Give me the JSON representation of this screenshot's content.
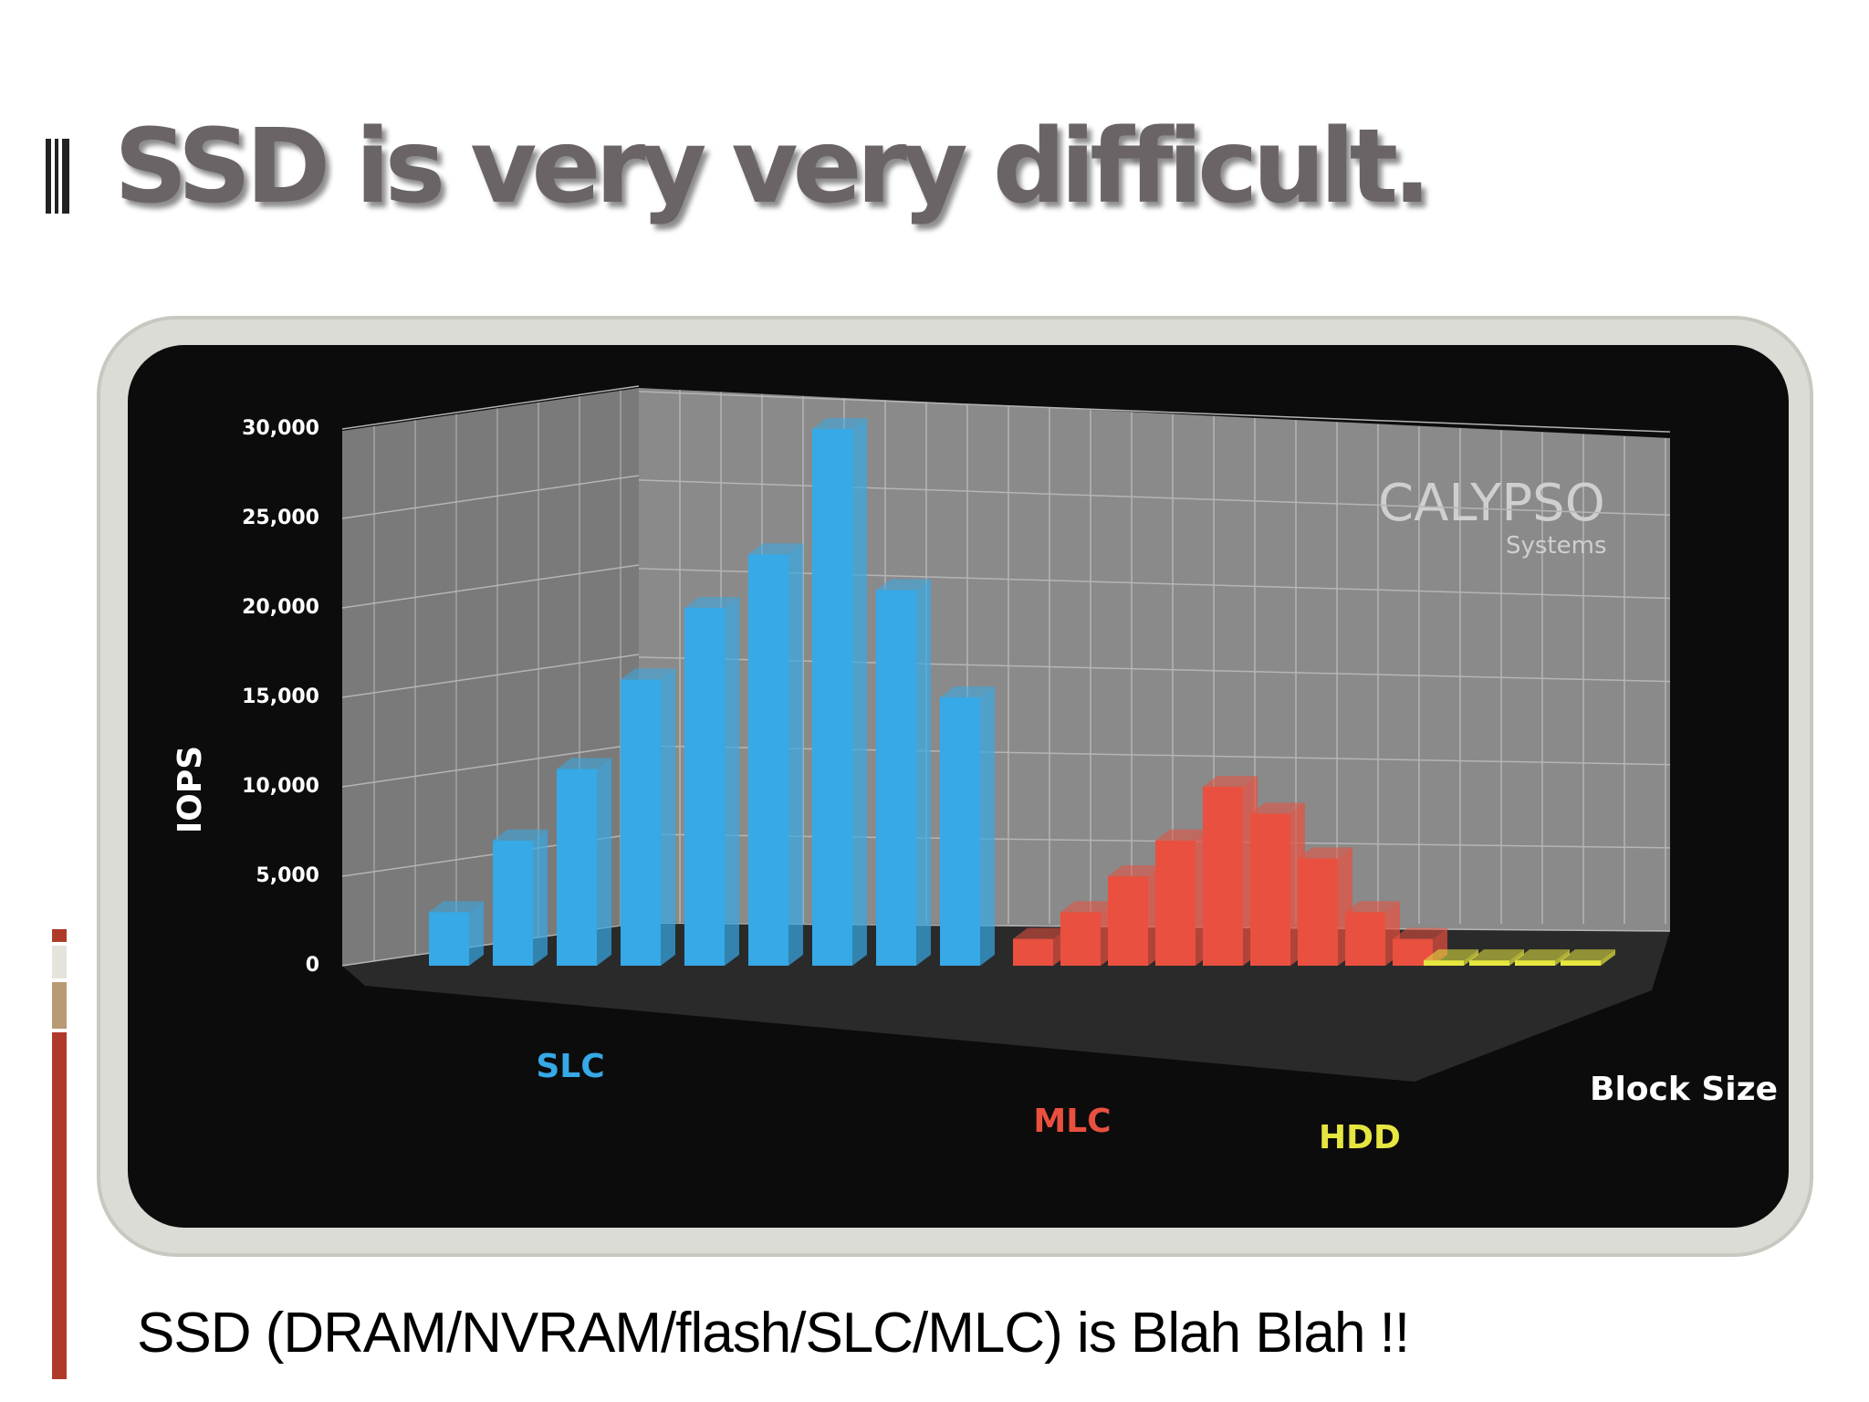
{
  "header": {
    "title": "SSD is very very difficult."
  },
  "chart_data": {
    "type": "bar3d",
    "ylabel": "IOPS",
    "xlabel": "Block Size",
    "watermark": {
      "brand": "CALYPSO",
      "sub": "Systems"
    },
    "ylim": [
      0,
      30000
    ],
    "yticks": [
      0,
      {
        "value": 5000,
        "label": "5,000"
      },
      {
        "value": 10000,
        "label": "10,000"
      },
      {
        "value": 15000,
        "label": "15,000"
      },
      {
        "value": 20000,
        "label": "20,000"
      },
      {
        "value": 25000,
        "label": "25,000"
      },
      {
        "value": 30000,
        "label": "30,000"
      }
    ],
    "series": [
      {
        "name": "SLC",
        "color": "#36a9e6",
        "values": [
          3000,
          7000,
          11000,
          16000,
          20000,
          23000,
          30000,
          21000,
          15000
        ]
      },
      {
        "name": "MLC",
        "color": "#e9503f",
        "values": [
          1500,
          3000,
          5000,
          7000,
          10000,
          8500,
          6000,
          3000,
          1500
        ]
      },
      {
        "name": "HDD",
        "color": "#e6e640",
        "values": [
          300,
          300,
          300,
          300
        ]
      }
    ]
  },
  "caption": "SSD (DRAM/NVRAM/flash/SLC/MLC) is Blah Blah !!"
}
